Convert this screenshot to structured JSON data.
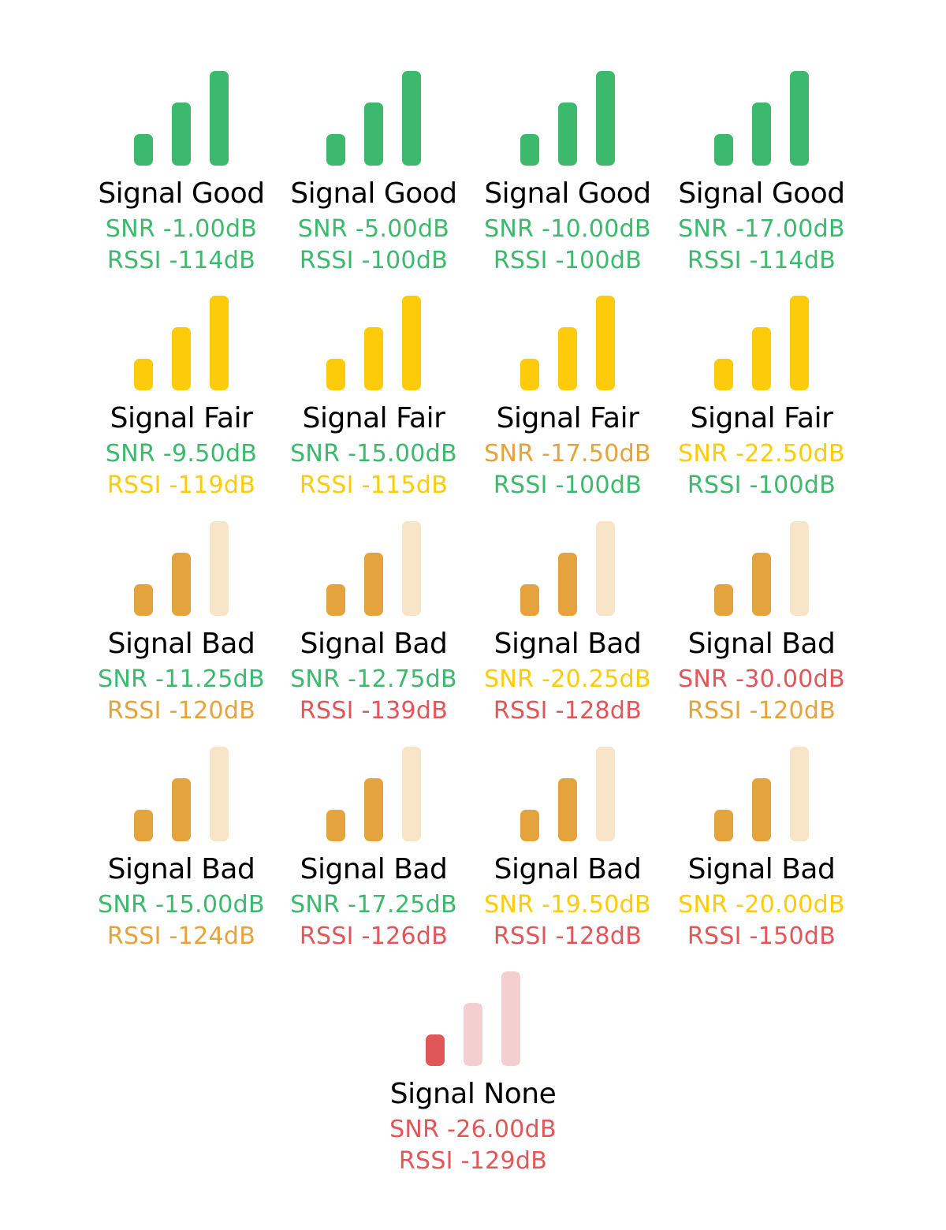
{
  "colors": {
    "green": "#3db96d",
    "yellow": "#fdcb0a",
    "orange": "#e5a33d",
    "orange_faded": "#f8e4c6",
    "red": "#e0575a",
    "red_faded": "#f4cfd0",
    "title": "#000000"
  },
  "signals": [
    {
      "title": "Signal Good",
      "level": 3,
      "quality": "good",
      "snr": "SNR -1.00dB",
      "snr_status": "green",
      "rssi": "RSSI -114dB",
      "rssi_status": "green"
    },
    {
      "title": "Signal Good",
      "level": 3,
      "quality": "good",
      "snr": "SNR -5.00dB",
      "snr_status": "green",
      "rssi": "RSSI -100dB",
      "rssi_status": "green"
    },
    {
      "title": "Signal Good",
      "level": 3,
      "quality": "good",
      "snr": "SNR -10.00dB",
      "snr_status": "green",
      "rssi": "RSSI -100dB",
      "rssi_status": "green"
    },
    {
      "title": "Signal Good",
      "level": 3,
      "quality": "good",
      "snr": "SNR -17.00dB",
      "snr_status": "green",
      "rssi": "RSSI -114dB",
      "rssi_status": "green"
    },
    {
      "title": "Signal Fair",
      "level": 3,
      "quality": "fair",
      "snr": "SNR -9.50dB",
      "snr_status": "green",
      "rssi": "RSSI -119dB",
      "rssi_status": "yellow"
    },
    {
      "title": "Signal Fair",
      "level": 3,
      "quality": "fair",
      "snr": "SNR -15.00dB",
      "snr_status": "green",
      "rssi": "RSSI -115dB",
      "rssi_status": "yellow"
    },
    {
      "title": "Signal Fair",
      "level": 3,
      "quality": "fair",
      "snr": "SNR -17.50dB",
      "snr_status": "orange",
      "rssi": "RSSI -100dB",
      "rssi_status": "green"
    },
    {
      "title": "Signal Fair",
      "level": 3,
      "quality": "fair",
      "snr": "SNR -22.50dB",
      "snr_status": "yellow",
      "rssi": "RSSI -100dB",
      "rssi_status": "green"
    },
    {
      "title": "Signal Bad",
      "level": 2,
      "quality": "bad",
      "snr": "SNR -11.25dB",
      "snr_status": "green",
      "rssi": "RSSI -120dB",
      "rssi_status": "orange"
    },
    {
      "title": "Signal Bad",
      "level": 2,
      "quality": "bad",
      "snr": "SNR -12.75dB",
      "snr_status": "green",
      "rssi": "RSSI -139dB",
      "rssi_status": "red"
    },
    {
      "title": "Signal Bad",
      "level": 2,
      "quality": "bad",
      "snr": "SNR -20.25dB",
      "snr_status": "yellow",
      "rssi": "RSSI -128dB",
      "rssi_status": "red"
    },
    {
      "title": "Signal Bad",
      "level": 2,
      "quality": "bad",
      "snr": "SNR -30.00dB",
      "snr_status": "red",
      "rssi": "RSSI -120dB",
      "rssi_status": "orange"
    },
    {
      "title": "Signal Bad",
      "level": 2,
      "quality": "bad",
      "snr": "SNR -15.00dB",
      "snr_status": "green",
      "rssi": "RSSI -124dB",
      "rssi_status": "orange"
    },
    {
      "title": "Signal Bad",
      "level": 2,
      "quality": "bad",
      "snr": "SNR -17.25dB",
      "snr_status": "green",
      "rssi": "RSSI -126dB",
      "rssi_status": "red"
    },
    {
      "title": "Signal Bad",
      "level": 2,
      "quality": "bad",
      "snr": "SNR -19.50dB",
      "snr_status": "yellow",
      "rssi": "RSSI -128dB",
      "rssi_status": "red"
    },
    {
      "title": "Signal Bad",
      "level": 2,
      "quality": "bad",
      "snr": "SNR -20.00dB",
      "snr_status": "yellow",
      "rssi": "RSSI -150dB",
      "rssi_status": "red"
    },
    {
      "title": "Signal None",
      "level": 1,
      "quality": "none",
      "snr": "SNR -26.00dB",
      "snr_status": "red",
      "rssi": "RSSI -129dB",
      "rssi_status": "red"
    }
  ]
}
